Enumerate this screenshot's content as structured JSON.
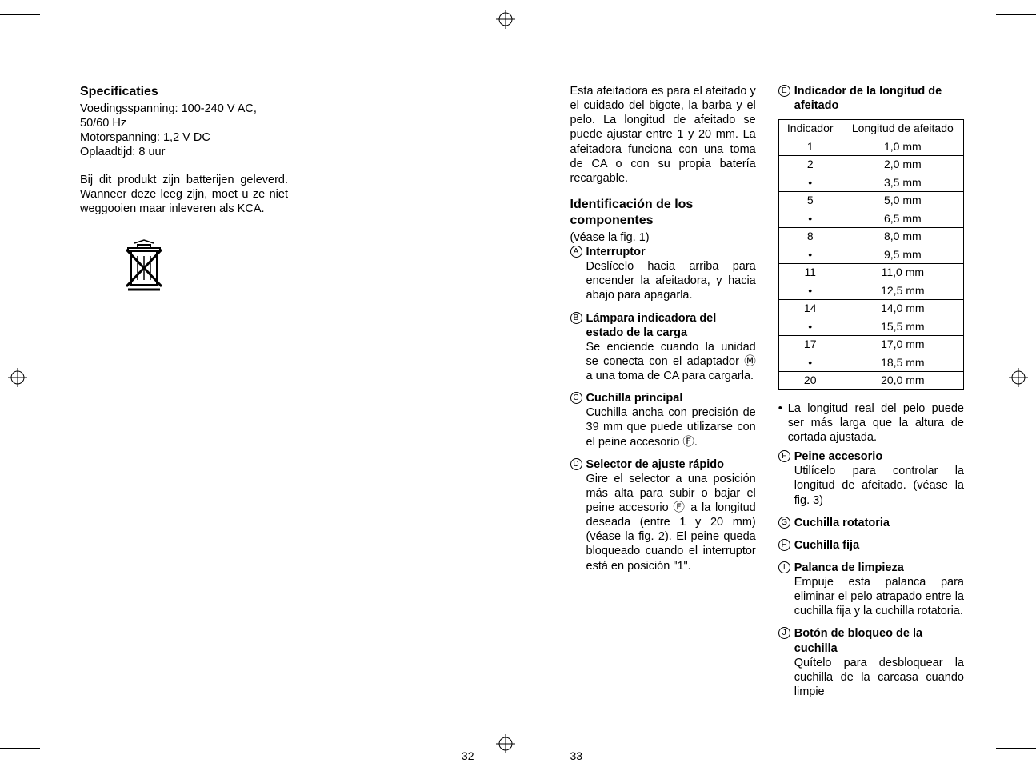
{
  "left_page": {
    "heading": "Specificaties",
    "specs": [
      "Voedingsspanning: 100-240 V AC, 50/60 Hz",
      "Motorspanning: 1,2 V DC",
      "Oplaadtijd: 8 uur"
    ],
    "battery_note": "Bij dit produkt zijn batterijen geleverd. Wanneer deze leeg zijn, moet u ze niet weggooien maar inleveren als KCA.",
    "page_number": "32"
  },
  "right_page": {
    "intro": "Esta afeitadora es para el afeitado y el cuidado del bigote, la barba y el pelo. La longitud de afeitado se puede ajustar entre 1 y 20 mm. La afeitadora funciona con una toma de CA o con su propia batería recargable.",
    "section_heading": "Identificación de los componentes",
    "section_note": "(véase la fig. 1)",
    "components_col1": [
      {
        "marker": "A",
        "title": "Interruptor",
        "body": "Deslícelo hacia arriba para encender la afeitadora, y hacia abajo para apagarla."
      },
      {
        "marker": "B",
        "title": "Lámpara indicadora del estado de la carga",
        "body": "Se enciende cuando la unidad se conecta con el adaptador Ⓜ a una toma de CA para cargarla."
      },
      {
        "marker": "C",
        "title": "Cuchilla principal",
        "body": "Cuchilla ancha con precisión de 39 mm que puede utilizarse con el peine accesorio Ⓕ."
      },
      {
        "marker": "D",
        "title": "Selector de ajuste rápido",
        "body": "Gire el selector a una posición más alta para subir o bajar el peine accesorio Ⓕ a la longitud deseada (entre 1 y 20 mm) (véase la fig. 2). El peine queda bloqueado cuando el interruptor está en posición \"1\"."
      }
    ],
    "table_item": {
      "marker": "E",
      "title": "Indicador de la longitud de afeitado"
    },
    "table_headers": [
      "Indicador",
      "Longitud de afeitado"
    ],
    "table_rows": [
      [
        "1",
        "1,0 mm"
      ],
      [
        "2",
        "2,0 mm"
      ],
      [
        "•",
        "3,5 mm"
      ],
      [
        "5",
        "5,0 mm"
      ],
      [
        "•",
        "6,5 mm"
      ],
      [
        "8",
        "8,0 mm"
      ],
      [
        "•",
        "9,5 mm"
      ],
      [
        "11",
        "11,0 mm"
      ],
      [
        "•",
        "12,5 mm"
      ],
      [
        "14",
        "14,0 mm"
      ],
      [
        "•",
        "15,5 mm"
      ],
      [
        "17",
        "17,0 mm"
      ],
      [
        "•",
        "18,5 mm"
      ],
      [
        "20",
        "20,0 mm"
      ]
    ],
    "table_note": "La longitud real del pelo puede ser más larga que la altura de cortada ajustada.",
    "components_col2": [
      {
        "marker": "F",
        "title": "Peine accesorio",
        "body": "Utilícelo para controlar la longitud de afeitado. (véase la fig. 3)"
      },
      {
        "marker": "G",
        "title": "Cuchilla rotatoria",
        "body": ""
      },
      {
        "marker": "H",
        "title": "Cuchilla fija",
        "body": ""
      },
      {
        "marker": "I",
        "title": "Palanca de limpieza",
        "body": "Empuje esta palanca para eliminar el pelo atrapado entre la cuchilla fija y la cuchilla rotatoria."
      },
      {
        "marker": "J",
        "title": "Botón de bloqueo de la cuchilla",
        "body": "Quítelo para desbloquear la cuchilla de la carcasa cuando limpie"
      }
    ],
    "page_number": "33"
  }
}
